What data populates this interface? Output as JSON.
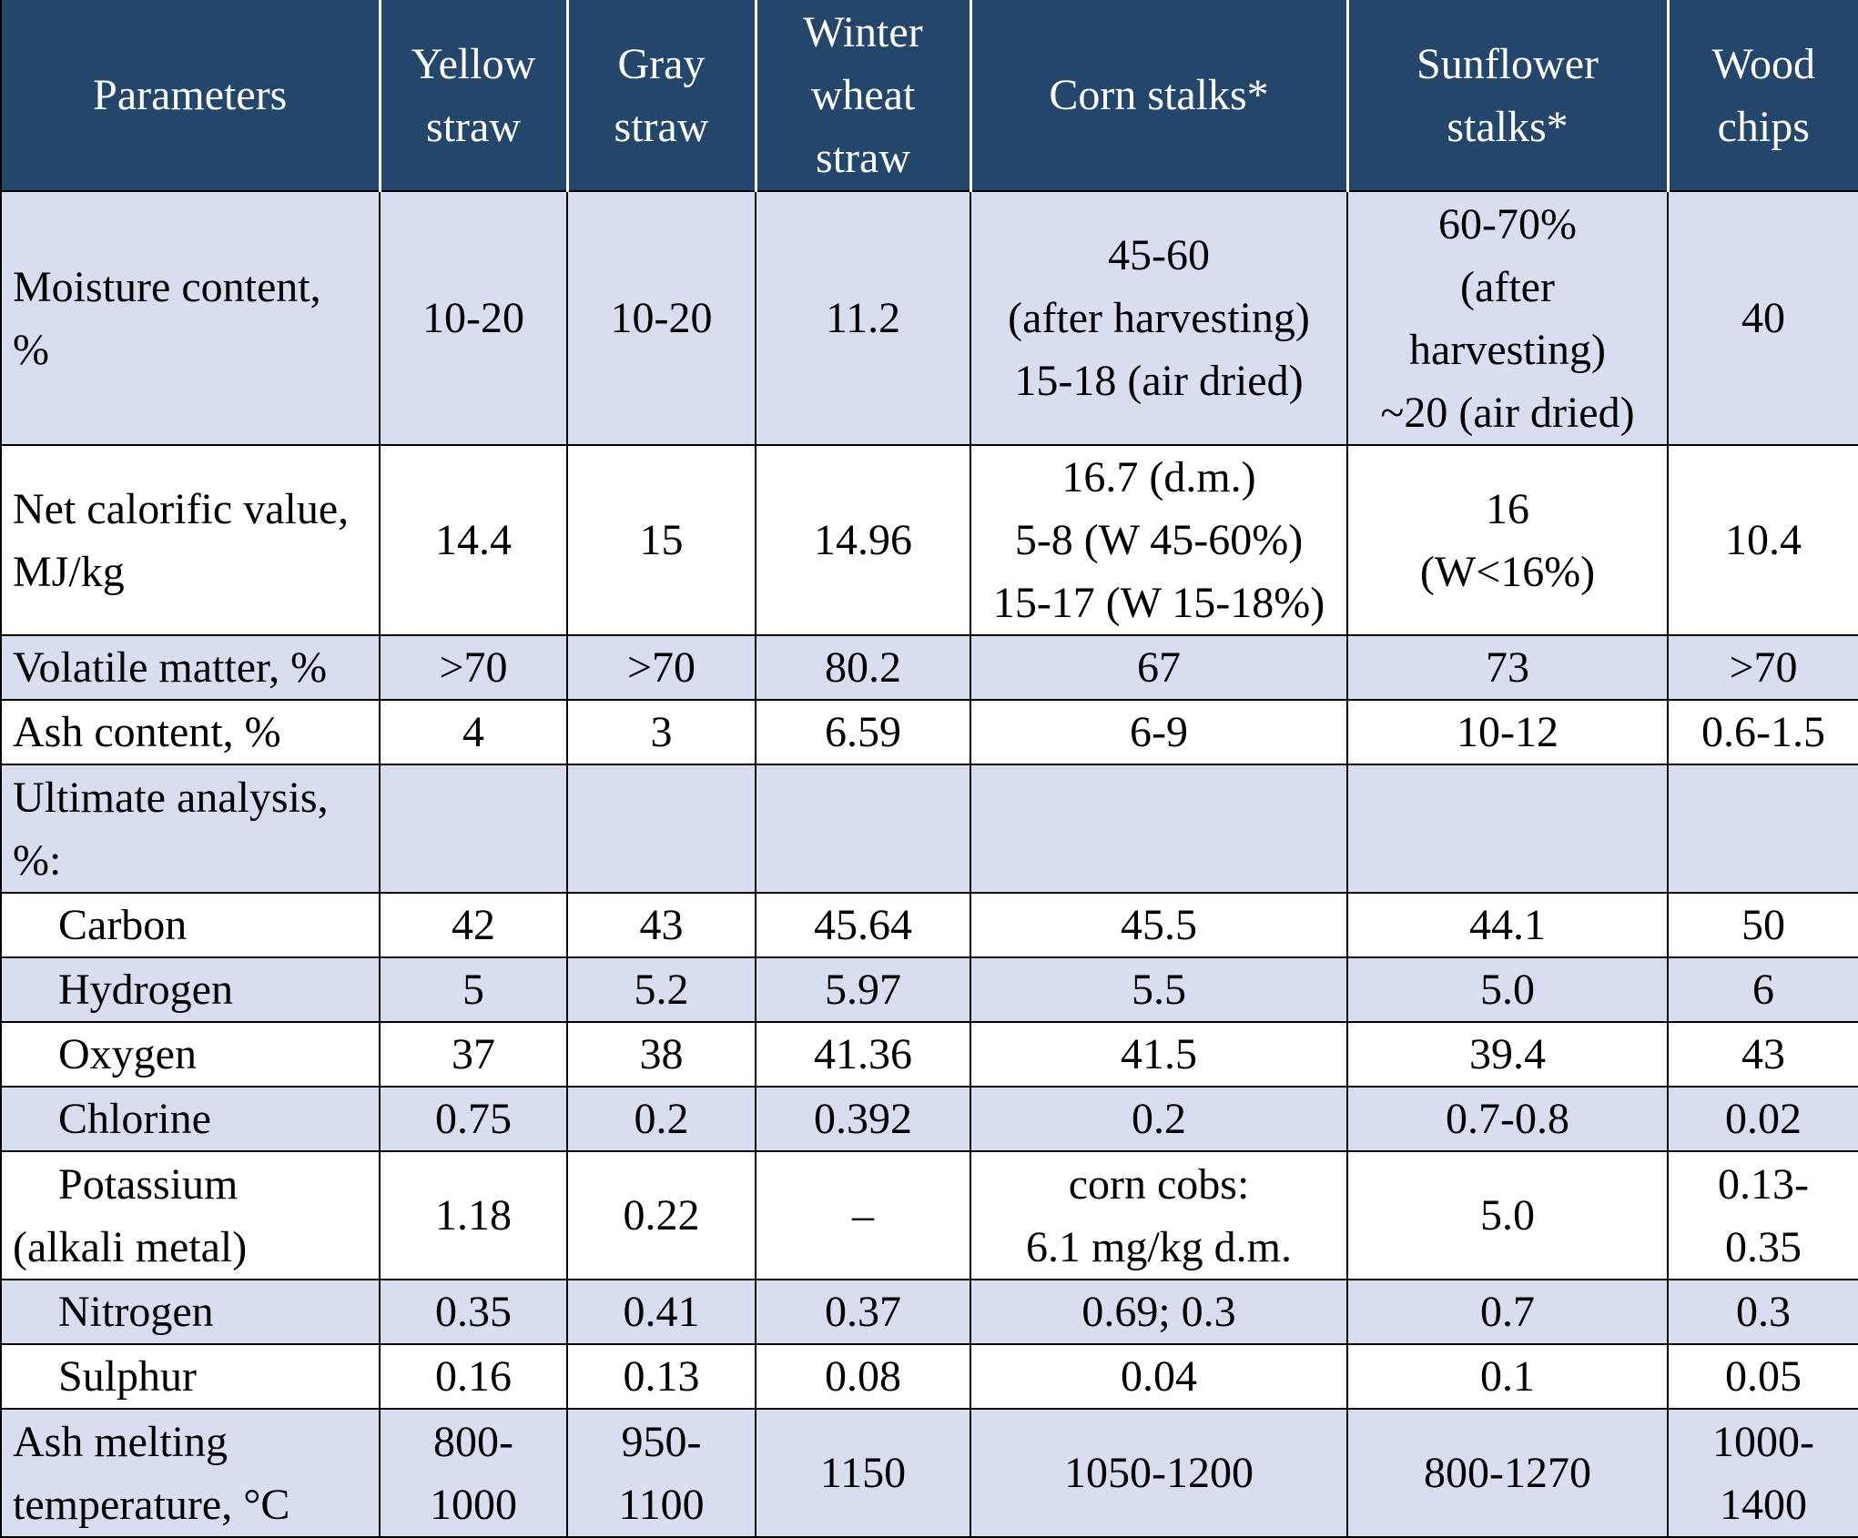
{
  "table": {
    "headers": [
      "Parameters",
      "Yellow\nstraw",
      "Gray\nstraw",
      "Winter\nwheat\nstraw",
      "Corn stalks*",
      "Sunflower\nstalks*",
      "Wood\nchips"
    ],
    "rows": [
      {
        "label": "Moisture content,\n%",
        "values": [
          "10-20",
          "10-20",
          "11.2",
          "45-60\n(after harvesting)\n15-18 (air dried)",
          "60-70%\n(after\nharvesting)\n~20 (air dried)",
          "40"
        ]
      },
      {
        "label": "Net calorific value,\nMJ/kg",
        "values": [
          "14.4",
          "15",
          "14.96",
          "16.7 (d.m.)\n5-8 (W 45-60%)\n15-17 (W 15-18%)",
          "16\n(W<16%)\n ",
          "10.4"
        ]
      },
      {
        "label": "Volatile matter, %",
        "values": [
          ">70",
          ">70",
          "80.2",
          "67",
          "73",
          ">70"
        ]
      },
      {
        "label": "Ash content, %",
        "values": [
          "4",
          "3",
          "6.59",
          "6-9",
          "10-12",
          "0.6-1.5"
        ]
      },
      {
        "label": "Ultimate analysis,\n%:",
        "values": [
          "",
          "",
          "",
          "",
          "",
          ""
        ]
      },
      {
        "label": "Carbon",
        "values": [
          "42",
          "43",
          "45.64",
          "45.5",
          "44.1",
          "50"
        ]
      },
      {
        "label": "Hydrogen",
        "values": [
          "5",
          "5.2",
          "5.97",
          "5.5",
          "5.0",
          "6"
        ]
      },
      {
        "label": "Oxygen",
        "values": [
          "37",
          "38",
          "41.36",
          "41.5",
          "39.4",
          "43"
        ]
      },
      {
        "label": "Chlorine",
        "values": [
          "0.75",
          "0.2",
          "0.392",
          "0.2",
          "0.7-0.8",
          "0.02"
        ]
      },
      {
        "label": "Potassium\n(alkali metal)",
        "values": [
          "1.18",
          "0.22",
          "–",
          "corn cobs:\n6.1 mg/kg d.m.",
          "5.0",
          "0.13-\n0.35"
        ]
      },
      {
        "label": "Nitrogen",
        "values": [
          "0.35",
          "0.41",
          "0.37",
          "0.69; 0.3",
          "0.7",
          "0.3"
        ]
      },
      {
        "label": "Sulphur",
        "values": [
          "0.16",
          "0.13",
          "0.08",
          "0.04",
          "0.1",
          "0.05"
        ]
      },
      {
        "label": "Ash melting\ntemperature, °C",
        "values": [
          "800-\n1000",
          "950-\n1100",
          "1150",
          "1050-1200",
          "800-1270",
          "1000-\n1400"
        ]
      }
    ]
  },
  "colors": {
    "header_bg": "#23466a",
    "header_text": "#ffffff",
    "shaded_row": "#d9ddf0",
    "plain_row": "#ffffff"
  }
}
